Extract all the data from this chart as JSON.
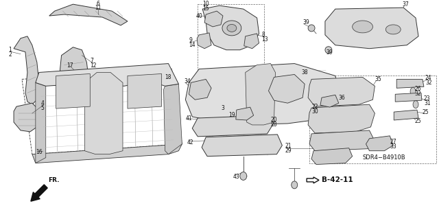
{
  "bg_color": "#ffffff",
  "fig_width": 6.4,
  "fig_height": 3.19,
  "dpi": 100,
  "diagram_code": "SDR4−B4910B",
  "ref_code": "B-42-11",
  "line_color": "#333333",
  "text_color": "#111111",
  "label_fontsize": 5.5,
  "diagram_fontsize": 6.5
}
